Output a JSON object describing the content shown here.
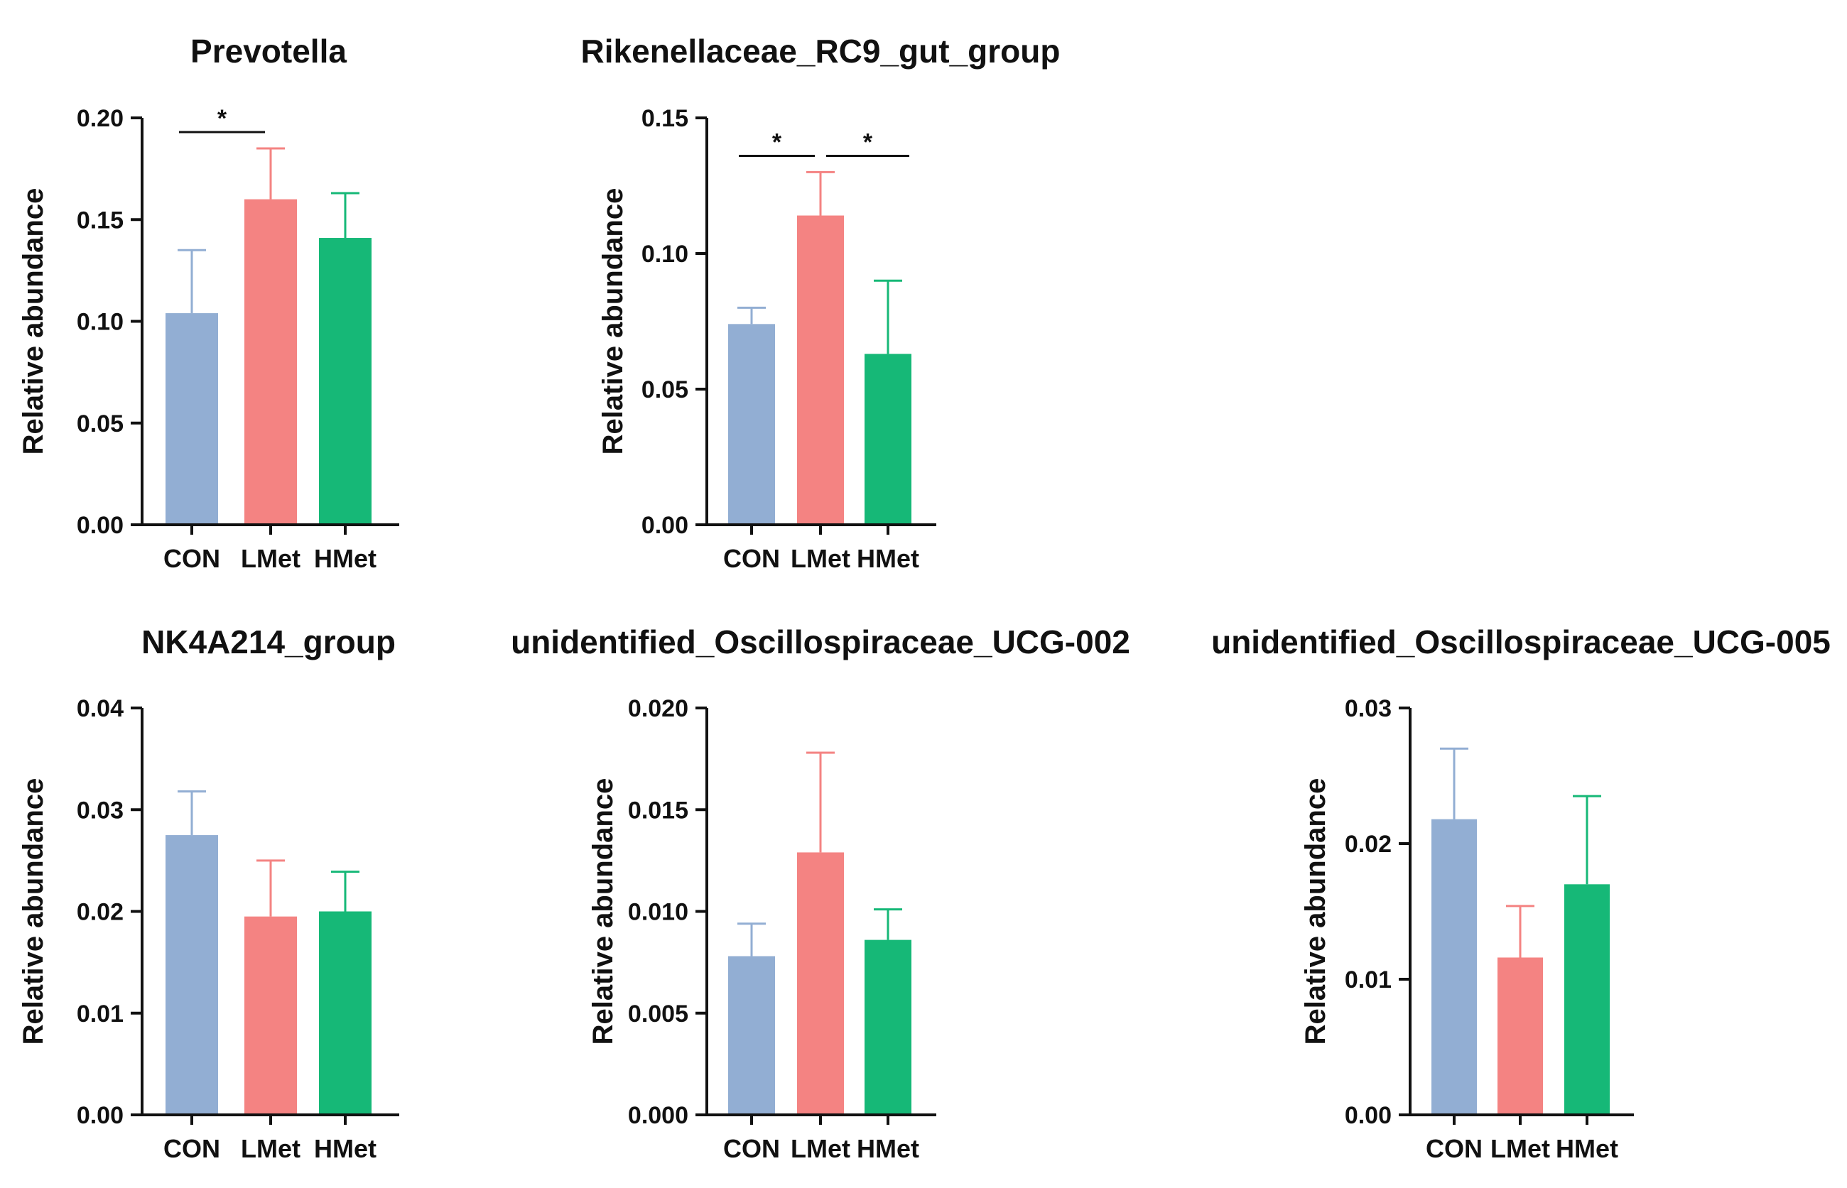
{
  "colors": {
    "CON": "#92aed3",
    "LMet": "#f48382",
    "HMet": "#16b877",
    "axis": "#111111"
  },
  "chart_data": [
    {
      "type": "bar",
      "title": "Prevotella",
      "xlabel": "",
      "ylabel": "Relative abundance",
      "categories": [
        "CON",
        "LMet",
        "HMet"
      ],
      "values": [
        0.104,
        0.16,
        0.141
      ],
      "error_upper": [
        0.135,
        0.185,
        0.163
      ],
      "ylim": [
        0,
        0.2
      ],
      "yticks": [
        "0.00",
        "0.05",
        "0.10",
        "0.15",
        "0.20"
      ],
      "significance": [
        {
          "from": 0,
          "to": 1,
          "label": "*",
          "y": 0.193
        }
      ]
    },
    {
      "type": "bar",
      "title": "Rikenellaceae_RC9_gut_group",
      "xlabel": "",
      "ylabel": "Relative abundance",
      "categories": [
        "CON",
        "LMet",
        "HMet"
      ],
      "values": [
        0.074,
        0.114,
        0.063
      ],
      "error_upper": [
        0.08,
        0.13,
        0.09
      ],
      "ylim": [
        0,
        0.15
      ],
      "yticks": [
        "0.00",
        "0.05",
        "0.10",
        "0.15"
      ],
      "significance": [
        {
          "from": 0,
          "to": 1,
          "label": "*",
          "y": 0.136
        },
        {
          "from": 1,
          "to": 2,
          "label": "*",
          "y": 0.136
        }
      ]
    },
    {
      "type": "bar",
      "title": "NK4A214_group",
      "xlabel": "",
      "ylabel": "Relative abundance",
      "categories": [
        "CON",
        "LMet",
        "HMet"
      ],
      "values": [
        0.0275,
        0.0195,
        0.02
      ],
      "error_upper": [
        0.0318,
        0.025,
        0.0239
      ],
      "ylim": [
        0,
        0.04
      ],
      "yticks": [
        "0.00",
        "0.01",
        "0.02",
        "0.03",
        "0.04"
      ],
      "significance": []
    },
    {
      "type": "bar",
      "title": "unidentified_Oscillospiraceae_UCG-002",
      "xlabel": "",
      "ylabel": "Relative abundance",
      "categories": [
        "CON",
        "LMet",
        "HMet"
      ],
      "values": [
        0.0078,
        0.0129,
        0.0086
      ],
      "error_upper": [
        0.0094,
        0.0178,
        0.0101
      ],
      "ylim": [
        0,
        0.02
      ],
      "yticks": [
        "0.000",
        "0.005",
        "0.010",
        "0.015",
        "0.020"
      ],
      "significance": []
    },
    {
      "type": "bar",
      "title": "unidentified_Oscillospiraceae_UCG-005",
      "xlabel": "",
      "ylabel": "Relative abundance",
      "categories": [
        "CON",
        "LMet",
        "HMet"
      ],
      "values": [
        0.0218,
        0.0116,
        0.017
      ],
      "error_upper": [
        0.027,
        0.0154,
        0.0235
      ],
      "ylim": [
        0,
        0.03
      ],
      "yticks": [
        "0.00",
        "0.01",
        "0.02",
        "0.03"
      ],
      "significance": []
    }
  ]
}
